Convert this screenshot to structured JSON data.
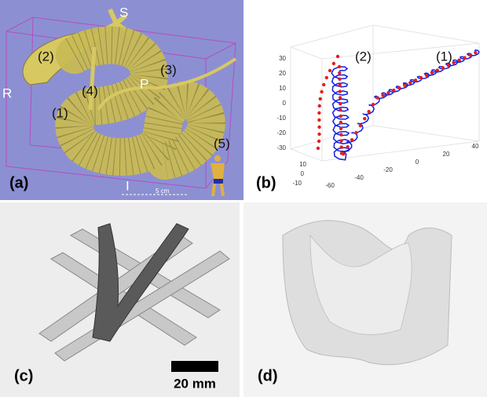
{
  "panels": [
    {
      "label": "(a)",
      "orientation": {
        "superior": "S",
        "right": "R",
        "posterior": "P",
        "inferior": "I"
      },
      "scale_bar": "5 cm",
      "annotations": [
        "(1)",
        "(2)",
        "(3)",
        "(4)",
        "(5)"
      ]
    },
    {
      "label": "(b)",
      "annotations": [
        "(1)",
        "(2)"
      ],
      "z_ticks": [
        30,
        20,
        10,
        0,
        -10,
        -20,
        -30
      ],
      "x_ticks": [
        -60,
        -40,
        -20,
        0,
        20,
        40
      ],
      "y_ticks": [
        10,
        0,
        -10
      ]
    },
    {
      "label": "(c)",
      "scale_bar": "20 mm"
    },
    {
      "label": "(d)"
    }
  ]
}
